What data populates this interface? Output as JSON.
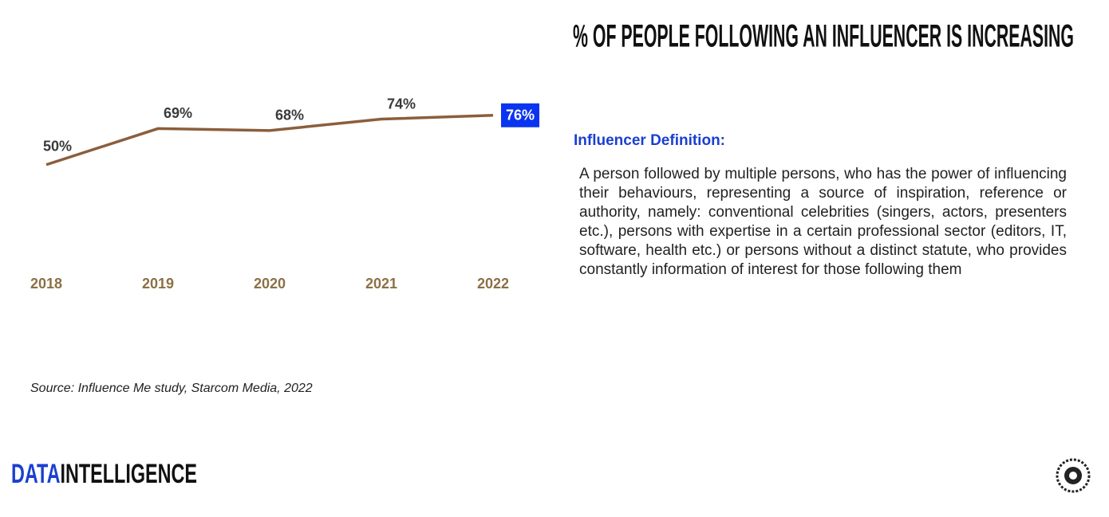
{
  "title": "% OF PEOPLE FOLLOWING AN INFLUENCER IS INCREASING",
  "chart_data": {
    "type": "line",
    "categories": [
      "2018",
      "2019",
      "2020",
      "2021",
      "2022"
    ],
    "values": [
      50,
      69,
      68,
      74,
      76
    ],
    "value_labels": [
      "50%",
      "69%",
      "68%",
      "74%",
      "76%"
    ],
    "color": "#8b5e3c",
    "highlight_color": "#0a34f0"
  },
  "definition": {
    "heading": "Influencer Definition:",
    "text": "A person followed by multiple persons, who has the power of influencing their behaviours, representing a source of inspiration, reference or authority, namely: conventional celebrities (singers, actors, presenters etc.), persons with expertise in a certain professional sector (editors, IT, software, health etc.) or persons without a distinct statute, who provides constantly information of interest for those following them"
  },
  "source": "Source: Influence Me study, Starcom Media, 2022",
  "brand": [
    "DATA",
    "INTELLIGENCE"
  ]
}
